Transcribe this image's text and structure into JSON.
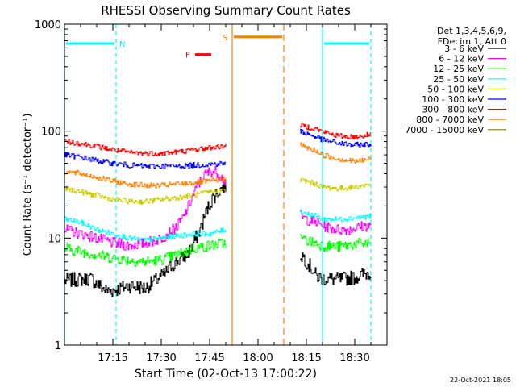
{
  "chart_data": {
    "type": "line",
    "title": "RHESSI Observing Summary Count Rates",
    "xlabel": "Start Time (02-Oct-13 17:00:22)",
    "ylabel": "Count Rate (s⁻¹ detector⁻¹)",
    "y_scale": "log",
    "ylim": [
      1,
      1000
    ],
    "xlim_minutes_after_start": [
      0,
      100
    ],
    "x_ticks": [
      {
        "min": 15,
        "label": "17:15"
      },
      {
        "min": 30,
        "label": "17:30"
      },
      {
        "min": 45,
        "label": "17:45"
      },
      {
        "min": 60,
        "label": "18:00"
      },
      {
        "min": 75,
        "label": "18:15"
      },
      {
        "min": 90,
        "label": "18:30"
      }
    ],
    "y_ticks": [
      {
        "value": 1,
        "label": "1"
      },
      {
        "value": 10,
        "label": "10"
      },
      {
        "value": 100,
        "label": "100"
      },
      {
        "value": 1000,
        "label": "1000"
      }
    ],
    "legend_header": [
      "Det 1,3,4,5,6,9,",
      "FDecim 1, Att 0"
    ],
    "legend_position": "right",
    "series": [
      {
        "name": "3 - 6 keV",
        "color": "#000000",
        "points": [
          [
            0,
            4
          ],
          [
            8,
            4.2
          ],
          [
            13,
            3.2
          ],
          [
            16,
            3.3
          ],
          [
            20,
            3.6
          ],
          [
            25,
            3.4
          ],
          [
            28,
            4
          ],
          [
            31,
            4.6
          ],
          [
            33,
            5.5
          ],
          [
            36,
            6.4
          ],
          [
            38,
            7
          ],
          [
            40,
            9
          ],
          [
            42,
            12
          ],
          [
            44,
            18
          ],
          [
            46,
            24
          ],
          [
            48,
            28
          ],
          [
            49,
            30
          ],
          [
            50,
            31
          ],
          null,
          [
            73,
            7
          ],
          [
            74,
            6.8
          ],
          [
            75,
            6
          ],
          [
            76,
            5.5
          ],
          [
            77,
            5
          ],
          [
            78,
            4.4
          ],
          [
            80,
            4.2
          ],
          [
            85,
            4.1
          ],
          [
            90,
            4.3
          ],
          [
            93,
            4.6
          ],
          [
            95,
            4.8
          ]
        ]
      },
      {
        "name": "6 - 12 keV",
        "color": "#ff00ff",
        "points": [
          [
            0,
            12
          ],
          [
            5,
            11
          ],
          [
            10,
            10
          ],
          [
            15,
            9
          ],
          [
            20,
            8.5
          ],
          [
            25,
            9
          ],
          [
            28,
            9.5
          ],
          [
            30,
            10
          ],
          [
            32,
            11
          ],
          [
            35,
            13
          ],
          [
            37,
            16
          ],
          [
            39,
            22
          ],
          [
            41,
            30
          ],
          [
            43,
            38
          ],
          [
            45,
            42
          ],
          [
            47,
            42
          ],
          [
            49,
            36
          ],
          [
            50,
            33
          ],
          null,
          [
            73,
            16
          ],
          [
            75,
            15
          ],
          [
            78,
            14
          ],
          [
            80,
            13
          ],
          [
            85,
            12
          ],
          [
            88,
            12
          ],
          [
            90,
            12.5
          ],
          [
            93,
            13
          ],
          [
            95,
            13
          ]
        ]
      },
      {
        "name": "12 - 25 keV",
        "color": "#00ff00",
        "points": [
          [
            0,
            8
          ],
          [
            5,
            7.5
          ],
          [
            10,
            7
          ],
          [
            15,
            6.5
          ],
          [
            20,
            6.2
          ],
          [
            25,
            6
          ],
          [
            30,
            6.3
          ],
          [
            35,
            7
          ],
          [
            40,
            8
          ],
          [
            45,
            8.5
          ],
          [
            50,
            9
          ],
          null,
          [
            73,
            10
          ],
          [
            75,
            9.5
          ],
          [
            78,
            9
          ],
          [
            80,
            8.5
          ],
          [
            85,
            8.3
          ],
          [
            90,
            8.8
          ],
          [
            95,
            9
          ]
        ]
      },
      {
        "name": "25 - 50 keV",
        "color": "#00ffff",
        "points": [
          [
            0,
            15
          ],
          [
            5,
            14
          ],
          [
            10,
            12
          ],
          [
            15,
            11
          ],
          [
            20,
            10
          ],
          [
            25,
            9.5
          ],
          [
            30,
            10
          ],
          [
            35,
            10.5
          ],
          [
            40,
            11
          ],
          [
            45,
            11
          ],
          [
            50,
            12
          ],
          null,
          [
            73,
            18
          ],
          [
            75,
            17
          ],
          [
            78,
            16
          ],
          [
            80,
            15
          ],
          [
            85,
            15
          ],
          [
            90,
            15.5
          ],
          [
            95,
            16
          ]
        ]
      },
      {
        "name": "50 - 100 keV",
        "color": "#cccc00",
        "points": [
          [
            0,
            29
          ],
          [
            5,
            27
          ],
          [
            10,
            25
          ],
          [
            15,
            23
          ],
          [
            20,
            22
          ],
          [
            25,
            22
          ],
          [
            30,
            23
          ],
          [
            35,
            24
          ],
          [
            40,
            25
          ],
          [
            45,
            27
          ],
          [
            50,
            28
          ],
          null,
          [
            73,
            35
          ],
          [
            75,
            34
          ],
          [
            78,
            32
          ],
          [
            80,
            30
          ],
          [
            85,
            29
          ],
          [
            90,
            30
          ],
          [
            95,
            32
          ]
        ]
      },
      {
        "name": "100 - 300 keV",
        "color": "#0000ff",
        "points": [
          [
            0,
            60
          ],
          [
            5,
            57
          ],
          [
            10,
            53
          ],
          [
            15,
            50
          ],
          [
            20,
            48
          ],
          [
            25,
            47
          ],
          [
            30,
            47
          ],
          [
            35,
            47
          ],
          [
            40,
            48
          ],
          [
            45,
            49
          ],
          [
            50,
            50
          ],
          null,
          [
            73,
            100
          ],
          [
            75,
            95
          ],
          [
            78,
            88
          ],
          [
            80,
            83
          ],
          [
            85,
            77
          ],
          [
            90,
            74
          ],
          [
            95,
            76
          ]
        ]
      },
      {
        "name": "300 - 800 keV",
        "color": "#ff0000",
        "points": [
          [
            0,
            80
          ],
          [
            5,
            77
          ],
          [
            10,
            72
          ],
          [
            15,
            67
          ],
          [
            20,
            63
          ],
          [
            25,
            62
          ],
          [
            30,
            62
          ],
          [
            35,
            64
          ],
          [
            40,
            67
          ],
          [
            45,
            70
          ],
          [
            50,
            73
          ],
          null,
          [
            73,
            115
          ],
          [
            75,
            110
          ],
          [
            78,
            105
          ],
          [
            80,
            99
          ],
          [
            85,
            90
          ],
          [
            90,
            88
          ],
          [
            95,
            93
          ]
        ]
      },
      {
        "name": "800 - 7000 keV",
        "color": "#ff8000",
        "points": [
          [
            0,
            42
          ],
          [
            5,
            40
          ],
          [
            10,
            37
          ],
          [
            15,
            34
          ],
          [
            20,
            32
          ],
          [
            25,
            31
          ],
          [
            30,
            31
          ],
          [
            35,
            32
          ],
          [
            40,
            33
          ],
          [
            45,
            34
          ],
          [
            50,
            36
          ],
          null,
          [
            73,
            75
          ],
          [
            75,
            70
          ],
          [
            78,
            65
          ],
          [
            80,
            60
          ],
          [
            85,
            55
          ],
          [
            90,
            52
          ],
          [
            95,
            55
          ]
        ]
      },
      {
        "name": "7000 - 15000 keV",
        "color": "#808000",
        "points": []
      }
    ],
    "annotations": [
      {
        "label": "N",
        "color": "#00ffff",
        "spans": [
          [
            0,
            16
          ],
          [
            80,
            95
          ]
        ],
        "bar_value": 660
      },
      {
        "label": "F",
        "color": "#ff0000",
        "spans": [
          [
            40,
            46
          ]
        ],
        "bar_value": 520
      },
      {
        "label": "S",
        "color": "#ff8000",
        "spans": [
          [
            52,
            68
          ]
        ],
        "bar_value": 760
      }
    ],
    "cyan_lines_solid_min": [
      0,
      80
    ],
    "cyan_lines_dashed_min": [
      16,
      95
    ],
    "orange_line_solid_min": 52,
    "orange_line_dashed_min": 68
  },
  "footer": {
    "timestamp": "22-Oct-2021 18:05"
  }
}
